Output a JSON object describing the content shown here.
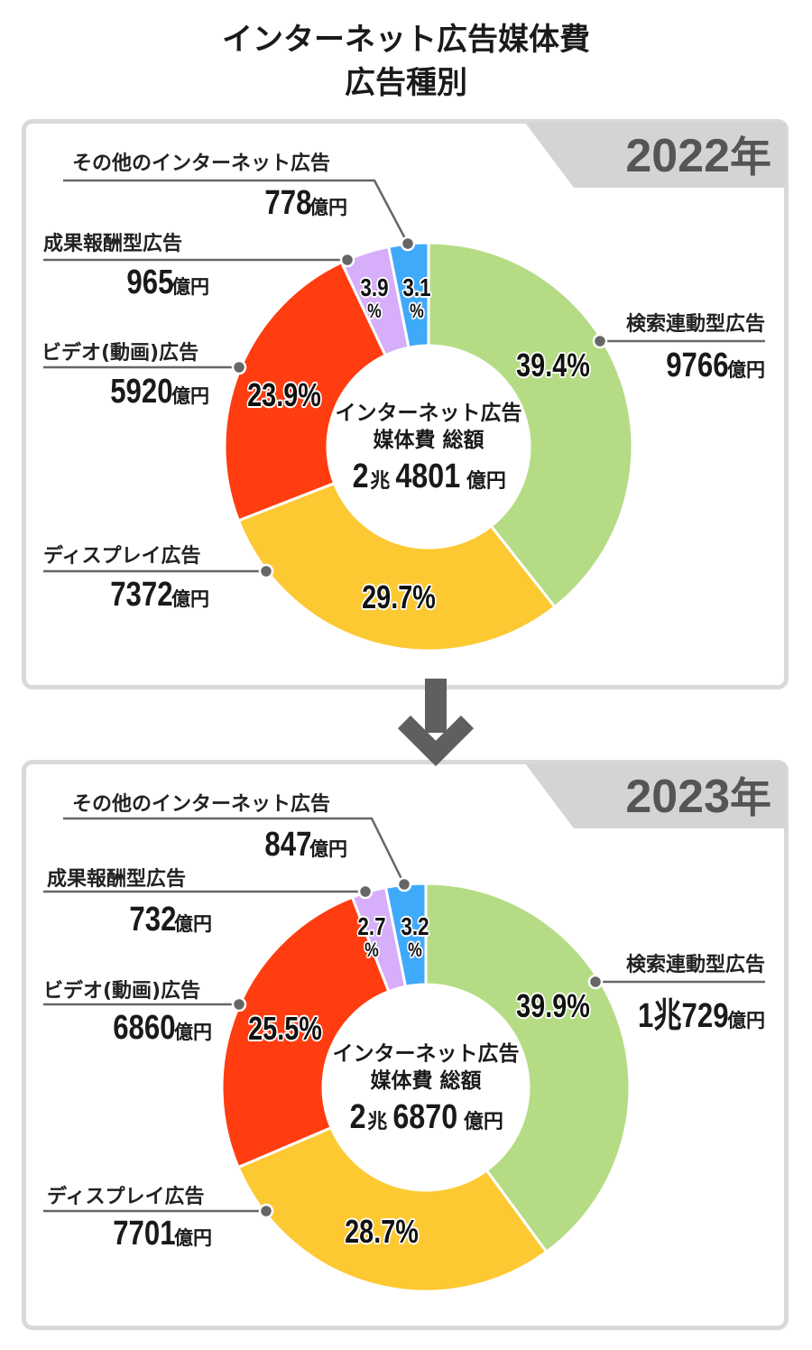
{
  "title": {
    "line1": "インターネット広告媒体費",
    "line2": "広告種別"
  },
  "unit": "億円",
  "chart_data": [
    {
      "type": "pie",
      "year": "2022",
      "year_suffix": "年",
      "center_label_1": "インターネット広告",
      "center_label_2": "媒体費  総額",
      "total": {
        "cho": "2",
        "cho_unit": "兆",
        "oku": "4801",
        "oku_unit": "億円"
      },
      "categories": [
        "検索連動型広告",
        "ディスプレイ広告",
        "ビデオ(動画)広告",
        "成果報酬型広告",
        "その他のインターネット広告"
      ],
      "values": [
        9766,
        7372,
        5920,
        965,
        778
      ],
      "value_labels": [
        "9766",
        "7372",
        "5920",
        "965",
        "778"
      ],
      "percent_labels": [
        "39.4%",
        "29.7%",
        "23.9%",
        "3.9",
        "3.1"
      ],
      "percent_sign": "%",
      "colors": [
        "#b5dc84",
        "#fdc933",
        "#ff3d10",
        "#d6aef9",
        "#40aafa"
      ]
    },
    {
      "type": "pie",
      "year": "2023",
      "year_suffix": "年",
      "center_label_1": "インターネット広告",
      "center_label_2": "媒体費  総額",
      "total": {
        "cho": "2",
        "cho_unit": "兆",
        "oku": "6870",
        "oku_unit": "億円"
      },
      "categories": [
        "検索連動型広告",
        "ディスプレイ広告",
        "ビデオ(動画)広告",
        "成果報酬型広告",
        "その他のインターネット広告"
      ],
      "values": [
        10729,
        7701,
        6860,
        732,
        847
      ],
      "value_labels": [
        "1兆729",
        "7701",
        "6860",
        "732",
        "847"
      ],
      "percent_labels": [
        "39.9%",
        "28.7%",
        "25.5%",
        "2.7",
        "3.2"
      ],
      "percent_sign": "%",
      "colors": [
        "#b5dc84",
        "#fdc933",
        "#ff3d10",
        "#d6aef9",
        "#40aafa"
      ]
    }
  ],
  "colors": {
    "panel_border": "#d9d9d9",
    "year_tab": "#d4d4d4",
    "year_text": "#555555",
    "arrow": "#5f5f5f",
    "leader": "#666666"
  }
}
